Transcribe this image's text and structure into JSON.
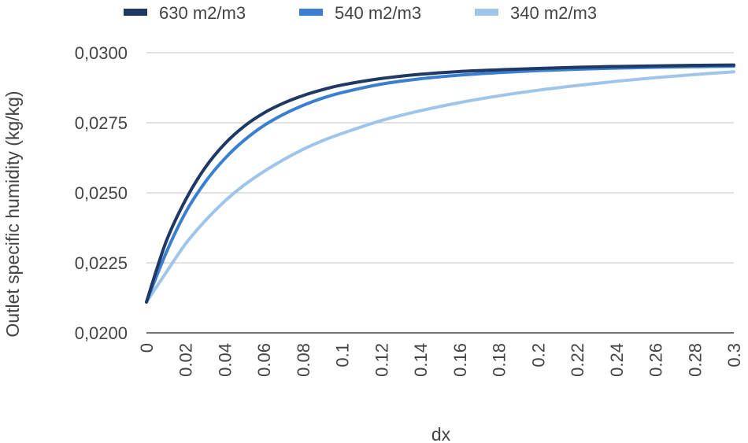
{
  "chart_data": {
    "type": "line",
    "xlabel": "dx",
    "ylabel": "Outlet specific humidity (kg/kg)",
    "ylim": [
      0.02,
      0.03
    ],
    "xlim": [
      0,
      0.3
    ],
    "grid": true,
    "legend_position": "top",
    "x_ticks": [
      "0",
      "0.02",
      "0.04",
      "0.06",
      "0.08",
      "0.1",
      "0.12",
      "0.14",
      "0.16",
      "0.18",
      "0.2",
      "0.22",
      "0.24",
      "0.26",
      "0.28",
      "0.3"
    ],
    "y_ticks": [
      "0,0200",
      "0,0225",
      "0,0250",
      "0,0275",
      "0,0300"
    ],
    "x": [
      0,
      0.01,
      0.02,
      0.03,
      0.04,
      0.05,
      0.06,
      0.07,
      0.08,
      0.09,
      0.1,
      0.12,
      0.14,
      0.16,
      0.18,
      0.2,
      0.22,
      0.24,
      0.26,
      0.28,
      0.3
    ],
    "series": [
      {
        "name": "630 m2/m3",
        "color": "#1f3864",
        "values": [
          0.0211,
          0.02325,
          0.02475,
          0.0259,
          0.02675,
          0.02738,
          0.02785,
          0.0282,
          0.02847,
          0.02868,
          0.02885,
          0.02908,
          0.02923,
          0.02933,
          0.02939,
          0.02944,
          0.02948,
          0.02951,
          0.02953,
          0.02955,
          0.02956
        ]
      },
      {
        "name": "540 m2/m3",
        "color": "#3a7fd0",
        "values": [
          0.0211,
          0.02285,
          0.0243,
          0.02538,
          0.02622,
          0.02688,
          0.0274,
          0.0278,
          0.02812,
          0.02838,
          0.02858,
          0.02888,
          0.02907,
          0.0292,
          0.02929,
          0.02936,
          0.02941,
          0.02945,
          0.02948,
          0.0295,
          0.02952
        ]
      },
      {
        "name": "340 m2/m3",
        "color": "#9fc5ea",
        "values": [
          0.0211,
          0.02215,
          0.02318,
          0.024,
          0.0247,
          0.02528,
          0.02576,
          0.02618,
          0.02655,
          0.02686,
          0.02712,
          0.02758,
          0.02793,
          0.02822,
          0.02846,
          0.02866,
          0.02883,
          0.02898,
          0.02911,
          0.02922,
          0.02932
        ]
      }
    ]
  }
}
